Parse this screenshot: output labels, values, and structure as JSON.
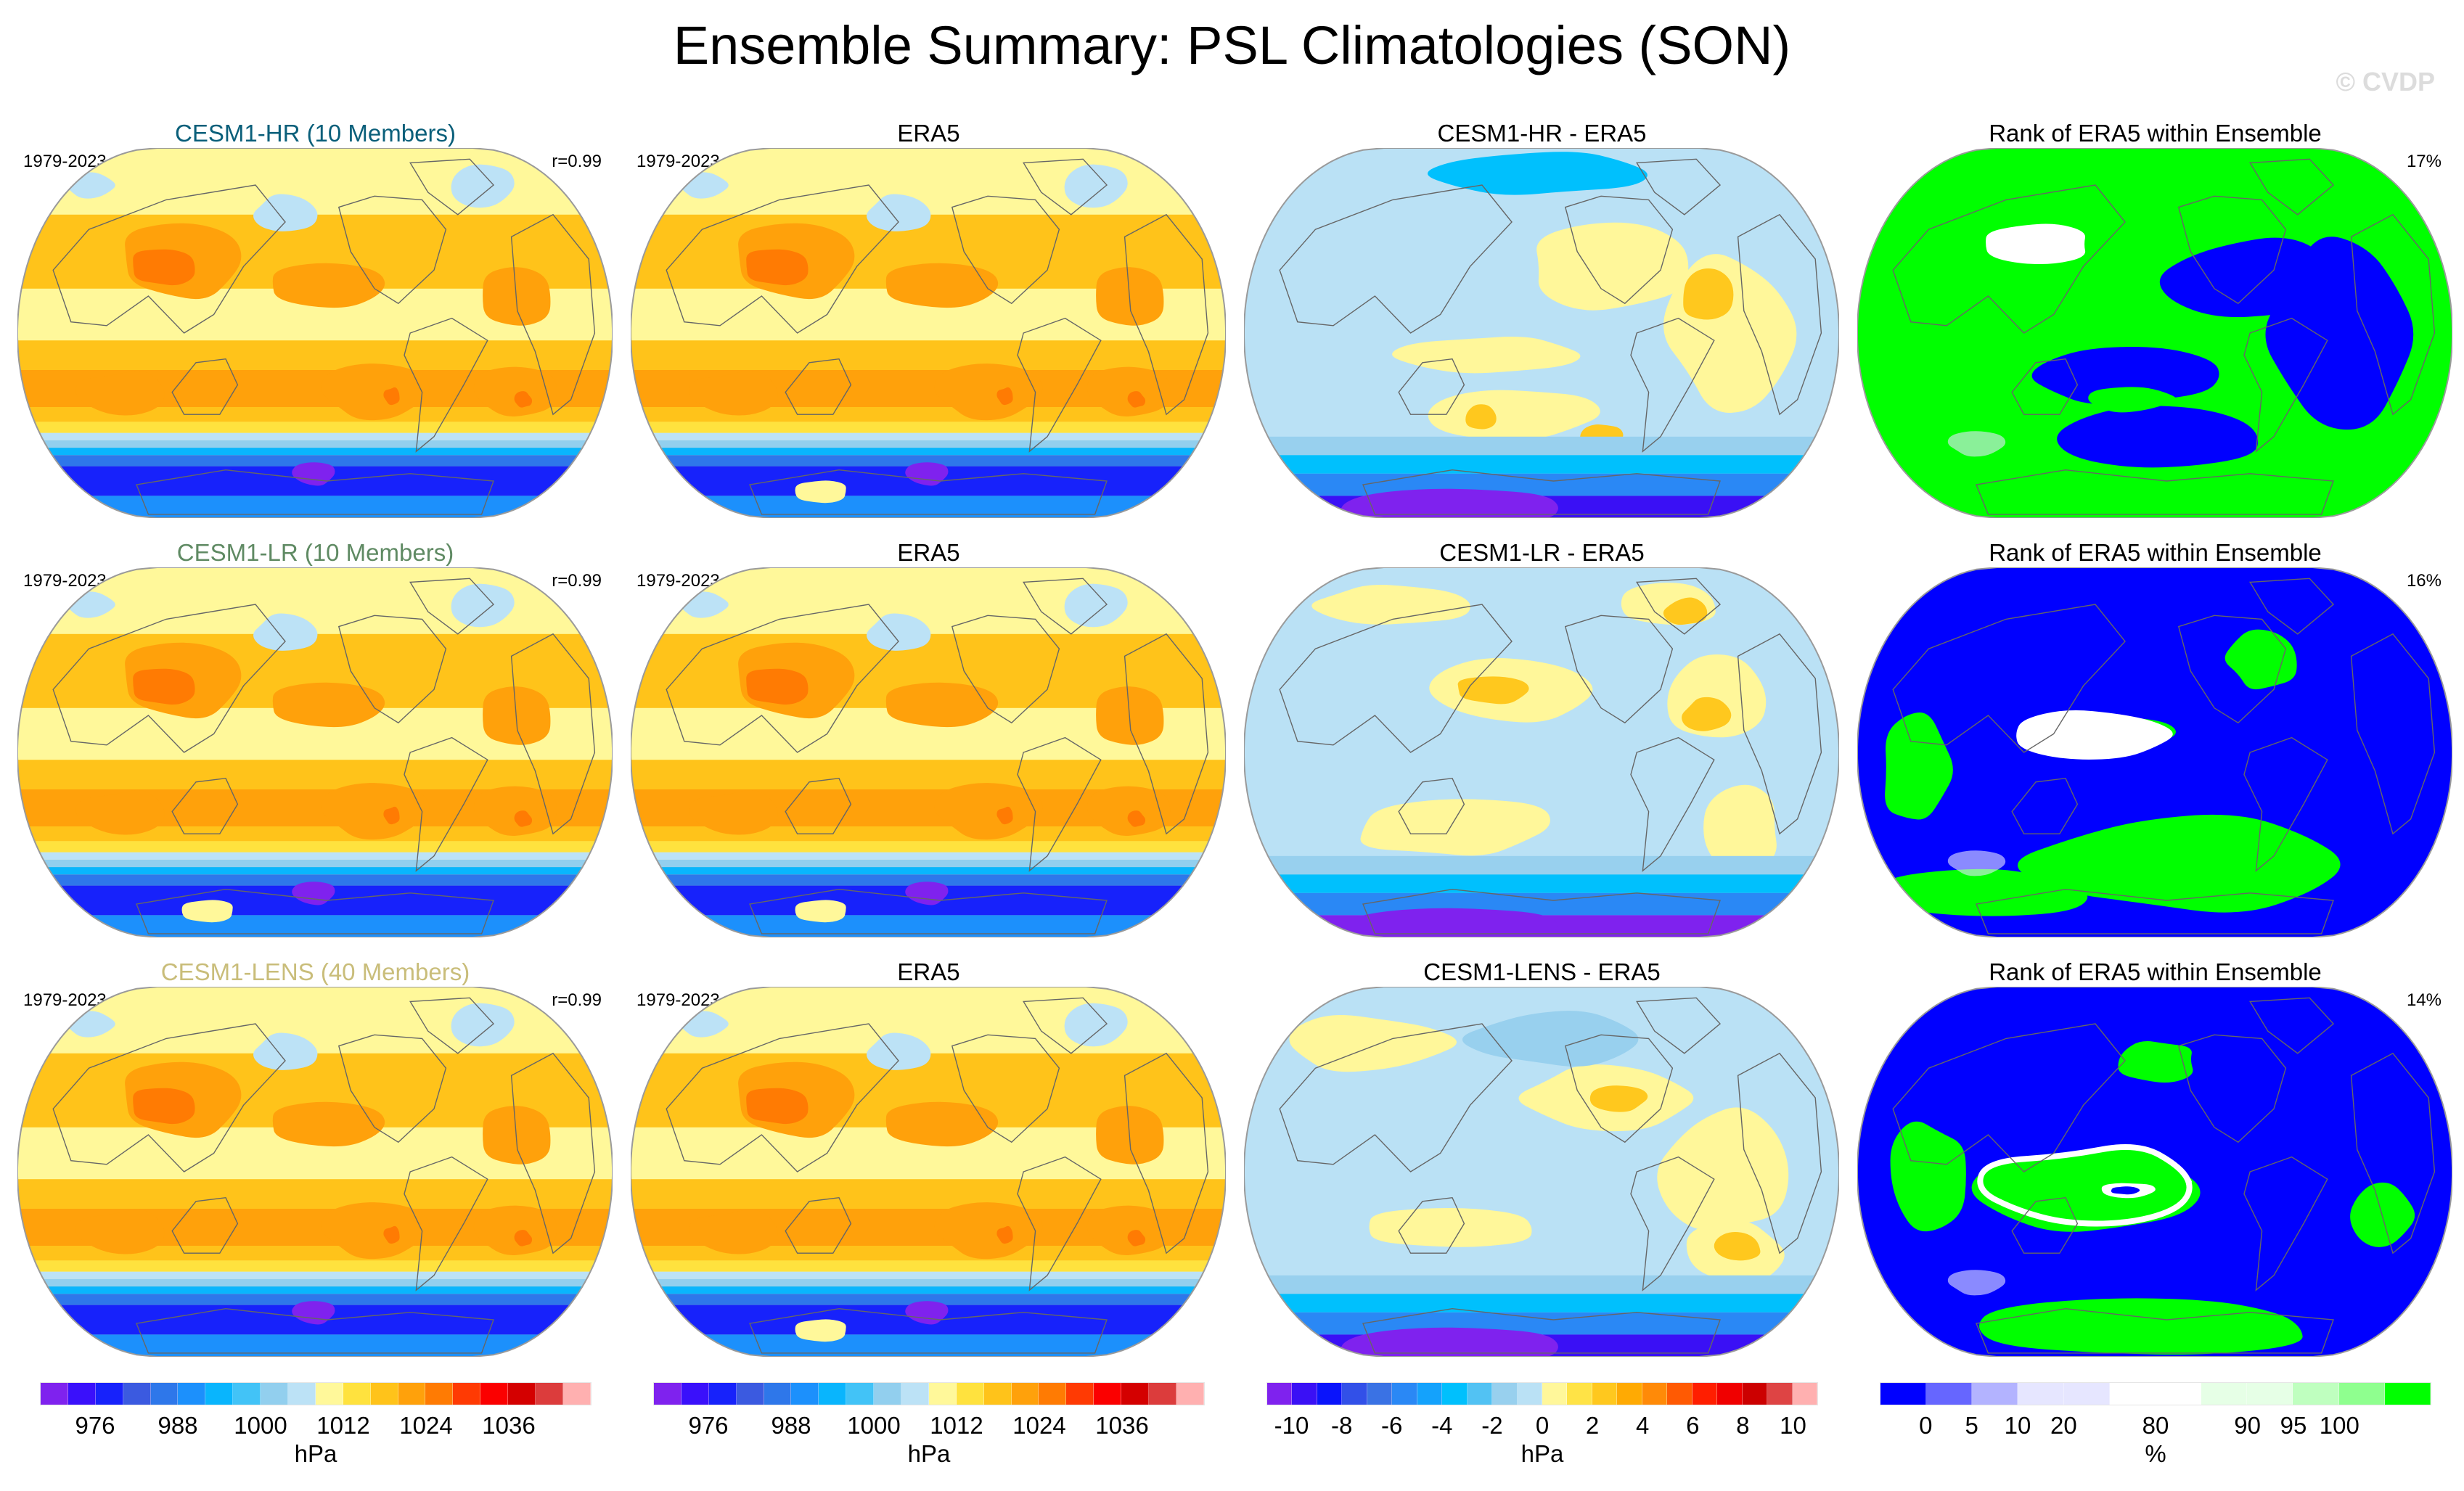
{
  "chart_data": {
    "type": "heatmap",
    "title": "Ensemble Summary: PSL Climatologies (SON)",
    "watermark": "© CVDP",
    "variable": "PSL",
    "season": "SON",
    "period": "1979-2023",
    "rows": [
      {
        "model": "CESM1-HR",
        "members": 10,
        "model_title": "CESM1-HR (10 Members)",
        "model_title_color": "#0a5f7a",
        "period": "1979-2023",
        "pattern_correlation": "r=0.99",
        "obs_title": "ERA5",
        "obs_period": "1979-2023",
        "diff_title": "CESM1-HR - ERA5",
        "rank_title": "Rank of ERA5 within Ensemble",
        "rank_percent": "17%"
      },
      {
        "model": "CESM1-LR",
        "members": 10,
        "model_title": "CESM1-LR (10 Members)",
        "model_title_color": "#5f8a63",
        "period": "1979-2023",
        "pattern_correlation": "r=0.99",
        "obs_title": "ERA5",
        "obs_period": "1979-2023",
        "diff_title": "CESM1-LR - ERA5",
        "rank_title": "Rank of ERA5 within Ensemble",
        "rank_percent": "16%"
      },
      {
        "model": "CESM1-LENS",
        "members": 40,
        "model_title": "CESM1-LENS (40 Members)",
        "model_title_color": "#c9bd7a",
        "period": "1979-2023",
        "pattern_correlation": "r=0.99",
        "obs_title": "ERA5",
        "obs_period": "1979-2023",
        "diff_title": "CESM1-LENS - ERA5",
        "rank_title": "Rank of ERA5 within Ensemble",
        "rank_percent": "14%"
      }
    ],
    "colorbars": [
      {
        "name": "climatology-model",
        "unit": "hPa",
        "tick_labels": [
          "976",
          "988",
          "1000",
          "1012",
          "1024",
          "1036"
        ],
        "tick_box_positions": [
          2,
          5,
          8,
          11,
          14,
          17
        ],
        "colors": [
          "#7f22ee",
          "#3a10fb",
          "#1722fb",
          "#3b5ae0",
          "#2e77ea",
          "#1c90fc",
          "#09b5fd",
          "#42c3f7",
          "#92cfee",
          "#bce2f6",
          "#fff89a",
          "#ffe23e",
          "#ffc31a",
          "#ffa10b",
          "#ff7b03",
          "#ff3a03",
          "#fb0000",
          "#d40000",
          "#dc3c3c",
          "#ffb0b0"
        ]
      },
      {
        "name": "climatology-obs",
        "unit": "hPa",
        "tick_labels": [
          "976",
          "988",
          "1000",
          "1012",
          "1024",
          "1036"
        ],
        "tick_box_positions": [
          2,
          5,
          8,
          11,
          14,
          17
        ],
        "colors": [
          "#7f22ee",
          "#3a10fb",
          "#1722fb",
          "#3b5ae0",
          "#2e77ea",
          "#1c90fc",
          "#09b5fd",
          "#42c3f7",
          "#92cfee",
          "#bce2f6",
          "#fff89a",
          "#ffe23e",
          "#ffc31a",
          "#ffa10b",
          "#ff7b03",
          "#ff3a03",
          "#fb0000",
          "#d40000",
          "#dc3c3c",
          "#ffb0b0"
        ]
      },
      {
        "name": "difference",
        "unit": "hPa",
        "tick_labels": [
          "-10",
          "-8",
          "-6",
          "-4",
          "-2",
          "0",
          "2",
          "4",
          "6",
          "8",
          "10"
        ],
        "tick_box_positions": [
          1,
          3,
          5,
          7,
          9,
          11,
          13,
          15,
          17,
          19,
          21
        ],
        "colors": [
          "#7f22ee",
          "#3a10f5",
          "#0a14fb",
          "#3250e8",
          "#3a72e4",
          "#2a88f5",
          "#14a2fc",
          "#00c0fd",
          "#52c2f3",
          "#98d0ee",
          "#bae1f5",
          "#fff79a",
          "#ffe346",
          "#ffc81e",
          "#ffaa03",
          "#ff8a08",
          "#ff5a03",
          "#ff1e00",
          "#f00000",
          "#cc0000",
          "#de4444",
          "#ffb0b0"
        ]
      },
      {
        "name": "rank",
        "unit": "%",
        "tick_labels": [
          "0",
          "5",
          "10",
          "20",
          "80",
          "90",
          "95",
          "100"
        ],
        "tick_box_positions": [
          1,
          2,
          3,
          4,
          6,
          8,
          9,
          10
        ],
        "colors": [
          "#0000ff",
          "#6666ff",
          "#b3b3ff",
          "#e6e6ff",
          "#e6e6ff",
          "#ffffff",
          "#ffffff",
          "#e6ffe6",
          "#e6ffe6",
          "#bfffbf",
          "#8fff8f",
          "#00ff00"
        ]
      }
    ]
  }
}
